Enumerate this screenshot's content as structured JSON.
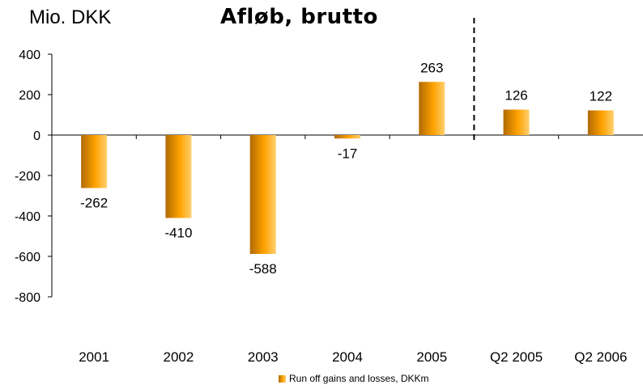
{
  "header": {
    "unit_label": "Mio. DKK",
    "title": "Afløb, brutto"
  },
  "legend": {
    "label": "Run off gains and losses, DKKm"
  },
  "colors": {
    "bar_dark": "#b06a00",
    "bar_mid": "#ffa200",
    "bar_light": "#ffd070"
  },
  "chart_data": {
    "type": "bar",
    "title": "Afløb, brutto",
    "ylabel": "Mio. DKK",
    "xlabel": "",
    "categories": [
      "2001",
      "2002",
      "2003",
      "2004",
      "2005",
      "Q2 2005",
      "Q2 2006"
    ],
    "series": [
      {
        "name": "Run off gains and losses, DKKm",
        "values": [
          -262,
          -410,
          -588,
          -17,
          263,
          126,
          122
        ]
      }
    ],
    "ylim": [
      -800,
      400
    ],
    "yticks": [
      400,
      200,
      0,
      -200,
      -400,
      -600,
      -800
    ],
    "data_labels": [
      "-262",
      "-410",
      "-588",
      "-17",
      "263",
      "126",
      "122"
    ],
    "separator_after_category": "2005",
    "grid": false,
    "legend_position": "bottom"
  }
}
